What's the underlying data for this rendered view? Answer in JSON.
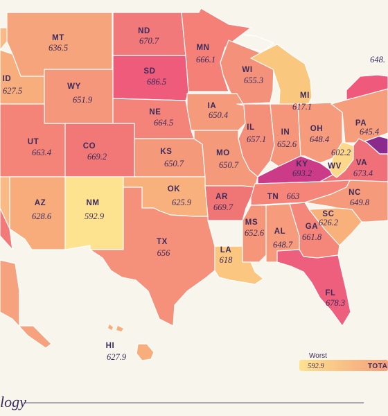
{
  "map": {
    "states": [
      {
        "abbr": "MT",
        "value": "636.5",
        "color": "#f6a47c"
      },
      {
        "abbr": "ND",
        "value": "670.7",
        "color": "#f27979"
      },
      {
        "abbr": "MN",
        "value": "666.1",
        "color": "#f48078"
      },
      {
        "abbr": "ID",
        "value": "627.5",
        "color": "#f8ae7c"
      },
      {
        "abbr": "WY",
        "value": "651.9",
        "color": "#f5977b"
      },
      {
        "abbr": "SD",
        "value": "686.5",
        "color": "#ef5b7b"
      },
      {
        "abbr": "WI",
        "value": "655.3",
        "color": "#f4917a"
      },
      {
        "abbr": "MI",
        "value": "617.1",
        "color": "#fac77e"
      },
      {
        "abbr": "IA",
        "value": "650.4",
        "color": "#f59a7b"
      },
      {
        "abbr": "NE",
        "value": "664.5",
        "color": "#f48479"
      },
      {
        "abbr": "UT",
        "value": "663.4",
        "color": "#f48478"
      },
      {
        "abbr": "CO",
        "value": "669.2",
        "color": "#f17876"
      },
      {
        "abbr": "IL",
        "value": "657.1",
        "color": "#f48f7a"
      },
      {
        "abbr": "IN",
        "value": "652.6",
        "color": "#f5967b"
      },
      {
        "abbr": "OH",
        "value": "648.4",
        "color": "#f69b7c"
      },
      {
        "abbr": "PA",
        "value": "645.4",
        "color": "#f69e7c"
      },
      {
        "abbr": "KS",
        "value": "650.7",
        "color": "#f5997b"
      },
      {
        "abbr": "MO",
        "value": "650.7",
        "color": "#f5997b"
      },
      {
        "abbr": "KY",
        "value": "693.2",
        "color": "#cc3b87"
      },
      {
        "abbr": "WV",
        "value": "602.2",
        "color": "#fbd88a"
      },
      {
        "abbr": "VA",
        "value": "673.4",
        "color": "#f0707a"
      },
      {
        "abbr": "AZ",
        "value": "628.6",
        "color": "#f8ac7c"
      },
      {
        "abbr": "NM",
        "value": "592.9",
        "color": "#fde28f"
      },
      {
        "abbr": "OK",
        "value": "625.9",
        "color": "#f8b07c"
      },
      {
        "abbr": "AR",
        "value": "669.7",
        "color": "#f07575"
      },
      {
        "abbr": "TN",
        "value": "663",
        "color": "#f48578"
      },
      {
        "abbr": "NC",
        "value": "649.8",
        "color": "#f59a7b"
      },
      {
        "abbr": "SC",
        "value": "626.2",
        "color": "#f9b17c"
      },
      {
        "abbr": "MS",
        "value": "652.6",
        "color": "#f5967b"
      },
      {
        "abbr": "AL",
        "value": "648.7",
        "color": "#f69b7c"
      },
      {
        "abbr": "GA",
        "value": "661.8",
        "color": "#f48779"
      },
      {
        "abbr": "TX",
        "value": "656",
        "color": "#f5917a"
      },
      {
        "abbr": "LA",
        "value": "618",
        "color": "#fbc67f"
      },
      {
        "abbr": "FL",
        "value": "678.3",
        "color": "#ee5f7e"
      },
      {
        "abbr": "HI",
        "value": "627.9",
        "color": "#f8ae7c"
      }
    ],
    "edge_values": {
      "northeast": "648."
    }
  },
  "legend": {
    "label_worst": "Worst",
    "min_value": "592.9",
    "total_label": "TOTA",
    "gradient_start": "#fde28f",
    "gradient_end": "#f4a07c"
  },
  "logo_text": "logy",
  "colors": {
    "background": "#f8f5ec",
    "text": "#3c2a5a",
    "neutral_land": "#f7b385",
    "md_dark": "#8a2a8c"
  }
}
